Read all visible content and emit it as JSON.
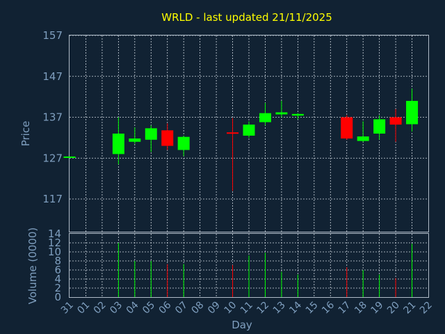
{
  "chart_data": {
    "type": "candlestick",
    "title": "WRLD - last updated 21/11/2025",
    "xlabel": "Day",
    "ylabel": "Price",
    "volume_label": "Volume (0000)",
    "x_ticks": [
      "31",
      "01",
      "02",
      "03",
      "04",
      "05",
      "06",
      "07",
      "08",
      "09",
      "10",
      "11",
      "12",
      "13",
      "14",
      "15",
      "16",
      "17",
      "18",
      "19",
      "20",
      "21",
      "22"
    ],
    "price_ticks": [
      117,
      127,
      137,
      147,
      157
    ],
    "price_range": [
      109,
      157
    ],
    "volume_ticks": [
      0,
      2,
      4,
      6,
      8,
      10,
      12,
      14
    ],
    "volume_range": [
      0,
      14
    ],
    "grid": true,
    "up_color": "#00ff00",
    "down_color": "#ff0000",
    "candles": [
      {
        "day": "31",
        "open": 127.2,
        "high": 127.4,
        "low": 127.0,
        "close": 127.4,
        "volume": 0
      },
      {
        "day": "03",
        "open": 128.0,
        "high": 137.0,
        "low": 125.5,
        "close": 133.0,
        "volume": 12.0
      },
      {
        "day": "04",
        "open": 131.0,
        "high": 134.5,
        "low": 130.5,
        "close": 131.8,
        "volume": 8.0
      },
      {
        "day": "05",
        "open": 131.5,
        "high": 135.0,
        "low": 128.5,
        "close": 134.3,
        "volume": 8.0
      },
      {
        "day": "06",
        "open": 133.8,
        "high": 135.5,
        "low": 129.0,
        "close": 130.0,
        "volume": 7.3
      },
      {
        "day": "07",
        "open": 129.0,
        "high": 132.5,
        "low": 127.5,
        "close": 132.2,
        "volume": 7.3
      },
      {
        "day": "10",
        "open": 133.3,
        "high": 136.8,
        "low": 119.0,
        "close": 133.0,
        "volume": 7.1
      },
      {
        "day": "11",
        "open": 132.5,
        "high": 136.0,
        "low": 132.0,
        "close": 135.2,
        "volume": 9.2
      },
      {
        "day": "12",
        "open": 135.8,
        "high": 140.5,
        "low": 135.0,
        "close": 138.0,
        "volume": 9.8
      },
      {
        "day": "13",
        "open": 137.7,
        "high": 141.0,
        "low": 137.0,
        "close": 138.2,
        "volume": 5.6
      },
      {
        "day": "14",
        "open": 137.4,
        "high": 138.0,
        "low": 136.5,
        "close": 137.8,
        "volume": 5.0
      },
      {
        "day": "17",
        "open": 137.0,
        "high": 137.5,
        "low": 131.5,
        "close": 131.8,
        "volume": 6.6
      },
      {
        "day": "18",
        "open": 131.2,
        "high": 136.0,
        "low": 131.0,
        "close": 132.3,
        "volume": 6.0
      },
      {
        "day": "19",
        "open": 133.0,
        "high": 137.5,
        "low": 131.5,
        "close": 136.5,
        "volume": 5.0
      },
      {
        "day": "20",
        "open": 137.0,
        "high": 139.0,
        "low": 131.0,
        "close": 135.2,
        "volume": 4.2
      },
      {
        "day": "21",
        "open": 135.3,
        "high": 144.0,
        "low": 133.5,
        "close": 141.0,
        "volume": 11.8
      }
    ]
  }
}
